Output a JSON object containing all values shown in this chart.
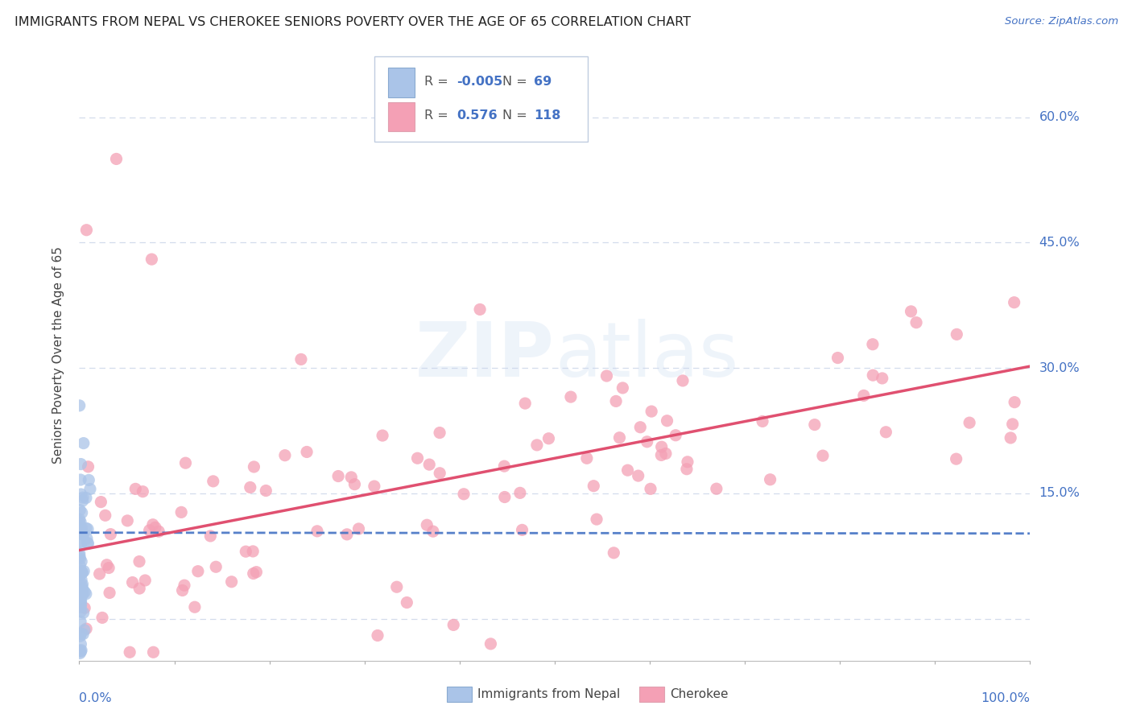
{
  "title": "IMMIGRANTS FROM NEPAL VS CHEROKEE SENIORS POVERTY OVER THE AGE OF 65 CORRELATION CHART",
  "source": "Source: ZipAtlas.com",
  "ylabel": "Seniors Poverty Over the Age of 65",
  "xlim": [
    0,
    1.0
  ],
  "ylim": [
    -0.05,
    0.68
  ],
  "yticks": [
    0.0,
    0.15,
    0.3,
    0.45,
    0.6
  ],
  "ytick_labels": [
    "",
    "15.0%",
    "30.0%",
    "45.0%",
    "60.0%"
  ],
  "xticks": [
    0.0,
    0.1,
    0.2,
    0.3,
    0.4,
    0.5,
    0.6,
    0.7,
    0.8,
    0.9,
    1.0
  ],
  "nepal_color": "#aac4e8",
  "cherokee_color": "#f4a0b5",
  "nepal_line_color": "#4472c4",
  "cherokee_line_color": "#e05070",
  "background_color": "#ffffff",
  "grid_color": "#c8d4e8",
  "axis_label_color": "#4472c4",
  "watermark": "ZIPatlas",
  "nepal_line_y0": 0.103,
  "nepal_line_y1": 0.102,
  "cherokee_line_y0": 0.082,
  "cherokee_line_y1": 0.302
}
